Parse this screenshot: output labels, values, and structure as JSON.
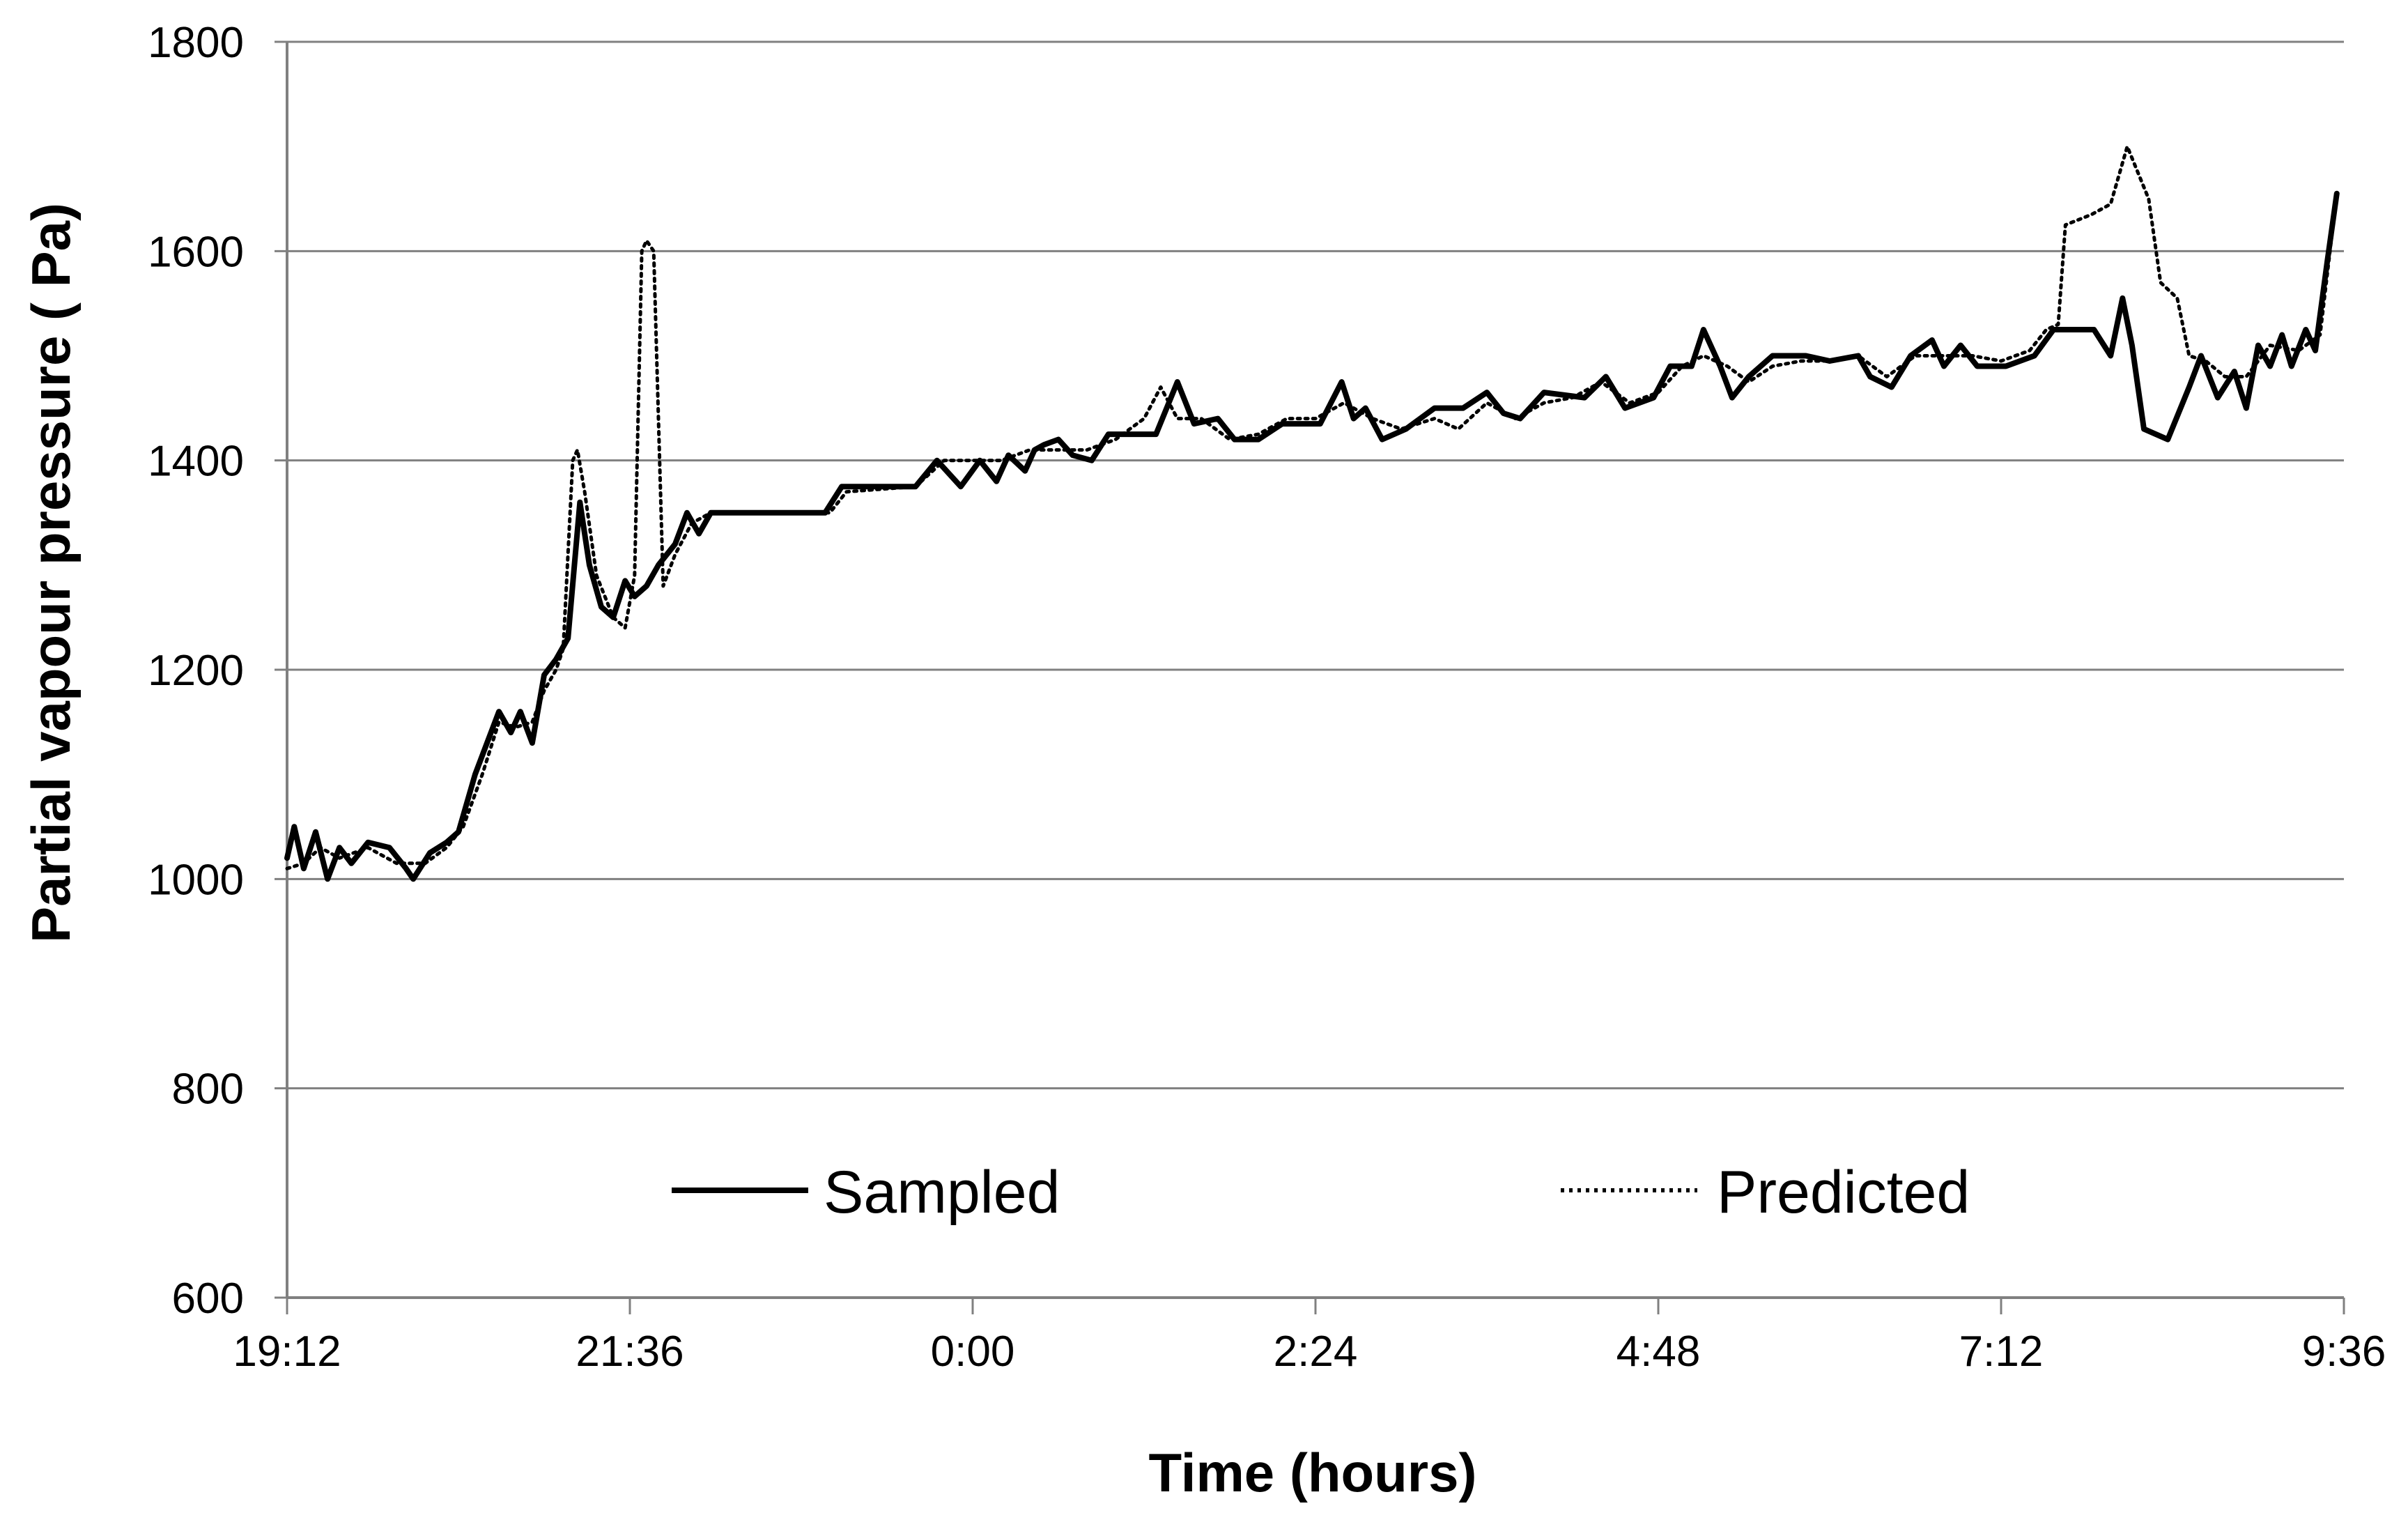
{
  "chart_data": {
    "type": "line",
    "xlabel": "Time (hours)",
    "ylabel": "Partial vapour pressure ( Pa)",
    "x_unit": "time of day (hh:mm), spanning 19:12 to 9:36 next day",
    "xlim": [
      "19:12",
      "9:36"
    ],
    "ylim": [
      600,
      1800
    ],
    "x_ticks": [
      "19:12",
      "21:36",
      "0:00",
      "2:24",
      "4:48",
      "7:12",
      "9:36"
    ],
    "y_ticks": [
      "600",
      "800",
      "1000",
      "1200",
      "1400",
      "1600",
      "1800"
    ],
    "grid": "horizontal",
    "legend_placement": "inside-lower",
    "colors": {
      "line": "#000000",
      "grid": "#808080",
      "axis": "#808080"
    },
    "series": [
      {
        "name": "Sampled",
        "style": "solid",
        "points": [
          [
            "19:12",
            1020
          ],
          [
            "19:15",
            1050
          ],
          [
            "19:19",
            1010
          ],
          [
            "19:24",
            1045
          ],
          [
            "19:29",
            1000
          ],
          [
            "19:34",
            1030
          ],
          [
            "19:39",
            1015
          ],
          [
            "19:46",
            1035
          ],
          [
            "19:55",
            1030
          ],
          [
            "20:02",
            1010
          ],
          [
            "20:05",
            1000
          ],
          [
            "20:12",
            1025
          ],
          [
            "20:19",
            1035
          ],
          [
            "20:24",
            1045
          ],
          [
            "20:31",
            1100
          ],
          [
            "20:36",
            1130
          ],
          [
            "20:41",
            1160
          ],
          [
            "20:46",
            1140
          ],
          [
            "20:50",
            1160
          ],
          [
            "20:55",
            1130
          ],
          [
            "21:00",
            1195
          ],
          [
            "21:05",
            1210
          ],
          [
            "21:10",
            1230
          ],
          [
            "21:15",
            1360
          ],
          [
            "21:19",
            1300
          ],
          [
            "21:24",
            1260
          ],
          [
            "21:29",
            1250
          ],
          [
            "21:34",
            1285
          ],
          [
            "21:38",
            1270
          ],
          [
            "21:43",
            1280
          ],
          [
            "21:48",
            1300
          ],
          [
            "21:55",
            1320
          ],
          [
            "22:00",
            1350
          ],
          [
            "22:05",
            1330
          ],
          [
            "22:10",
            1350
          ],
          [
            "22:36",
            1350
          ],
          [
            "22:58",
            1350
          ],
          [
            "23:05",
            1375
          ],
          [
            "23:36",
            1375
          ],
          [
            "23:45",
            1400
          ],
          [
            "23:55",
            1375
          ],
          [
            "24:03",
            1400
          ],
          [
            "24:10",
            1380
          ],
          [
            "24:15",
            1405
          ],
          [
            "24:22",
            1390
          ],
          [
            "24:26",
            1410
          ],
          [
            "24:30",
            1415
          ],
          [
            "24:36",
            1420
          ],
          [
            "24:42",
            1405
          ],
          [
            "24:50",
            1400
          ],
          [
            "24:57",
            1425
          ],
          [
            "25:05",
            1425
          ],
          [
            "25:17",
            1425
          ],
          [
            "25:26",
            1475
          ],
          [
            "25:33",
            1435
          ],
          [
            "25:43",
            1440
          ],
          [
            "25:50",
            1420
          ],
          [
            "26:00",
            1420
          ],
          [
            "26:10",
            1435
          ],
          [
            "26:26",
            1435
          ],
          [
            "26:35",
            1475
          ],
          [
            "26:40",
            1440
          ],
          [
            "26:45",
            1450
          ],
          [
            "26:52",
            1420
          ],
          [
            "27:02",
            1430
          ],
          [
            "27:14",
            1450
          ],
          [
            "27:26",
            1450
          ],
          [
            "27:36",
            1465
          ],
          [
            "27:43",
            1445
          ],
          [
            "27:50",
            1440
          ],
          [
            "28:00",
            1465
          ],
          [
            "28:17",
            1460
          ],
          [
            "28:26",
            1480
          ],
          [
            "28:34",
            1450
          ],
          [
            "28:46",
            1460
          ],
          [
            "28:53",
            1490
          ],
          [
            "29:02",
            1490
          ],
          [
            "29:07",
            1525
          ],
          [
            "29:14",
            1490
          ],
          [
            "29:19",
            1460
          ],
          [
            "29:26",
            1480
          ],
          [
            "29:36",
            1500
          ],
          [
            "29:50",
            1500
          ],
          [
            "30:00",
            1495
          ],
          [
            "30:12",
            1500
          ],
          [
            "30:17",
            1480
          ],
          [
            "30:26",
            1470
          ],
          [
            "30:34",
            1500
          ],
          [
            "30:43",
            1515
          ],
          [
            "30:48",
            1490
          ],
          [
            "30:55",
            1510
          ],
          [
            "31:02",
            1490
          ],
          [
            "31:14",
            1490
          ],
          [
            "31:26",
            1500
          ],
          [
            "31:34",
            1525
          ],
          [
            "31:51",
            1525
          ],
          [
            "31:58",
            1500
          ],
          [
            "32:03",
            1555
          ],
          [
            "32:07",
            1510
          ],
          [
            "32:12",
            1430
          ],
          [
            "32:22",
            1420
          ],
          [
            "32:31",
            1470
          ],
          [
            "32:36",
            1500
          ],
          [
            "32:43",
            1460
          ],
          [
            "32:50",
            1485
          ],
          [
            "32:55",
            1450
          ],
          [
            "33:00",
            1510
          ],
          [
            "33:05",
            1490
          ],
          [
            "33:10",
            1520
          ],
          [
            "33:14",
            1490
          ],
          [
            "33:20",
            1525
          ],
          [
            "33:24",
            1505
          ],
          [
            "33:29",
            1590
          ],
          [
            "33:33",
            1655
          ]
        ]
      },
      {
        "name": "Predicted",
        "style": "dotted",
        "points": [
          [
            "19:12",
            1010
          ],
          [
            "19:19",
            1015
          ],
          [
            "19:26",
            1030
          ],
          [
            "19:34",
            1020
          ],
          [
            "19:46",
            1030
          ],
          [
            "19:58",
            1015
          ],
          [
            "20:10",
            1015
          ],
          [
            "20:19",
            1030
          ],
          [
            "20:26",
            1050
          ],
          [
            "20:34",
            1100
          ],
          [
            "20:41",
            1150
          ],
          [
            "20:48",
            1145
          ],
          [
            "20:55",
            1150
          ],
          [
            "21:00",
            1180
          ],
          [
            "21:05",
            1200
          ],
          [
            "21:08",
            1220
          ],
          [
            "21:12",
            1400
          ],
          [
            "21:14",
            1410
          ],
          [
            "21:17",
            1370
          ],
          [
            "21:22",
            1290
          ],
          [
            "21:29",
            1250
          ],
          [
            "21:34",
            1240
          ],
          [
            "21:38",
            1290
          ],
          [
            "21:41",
            1600
          ],
          [
            "21:43",
            1610
          ],
          [
            "21:46",
            1600
          ],
          [
            "21:50",
            1280
          ],
          [
            "21:55",
            1310
          ],
          [
            "22:02",
            1340
          ],
          [
            "22:10",
            1350
          ],
          [
            "22:36",
            1350
          ],
          [
            "23:00",
            1350
          ],
          [
            "23:07",
            1370
          ],
          [
            "23:36",
            1375
          ],
          [
            "23:48",
            1400
          ],
          [
            "24:00",
            1400
          ],
          [
            "24:12",
            1400
          ],
          [
            "24:24",
            1410
          ],
          [
            "24:36",
            1410
          ],
          [
            "24:48",
            1410
          ],
          [
            "25:00",
            1420
          ],
          [
            "25:12",
            1440
          ],
          [
            "25:19",
            1470
          ],
          [
            "25:26",
            1440
          ],
          [
            "25:36",
            1440
          ],
          [
            "25:48",
            1420
          ],
          [
            "26:00",
            1425
          ],
          [
            "26:12",
            1440
          ],
          [
            "26:24",
            1440
          ],
          [
            "26:36",
            1455
          ],
          [
            "26:48",
            1440
          ],
          [
            "27:00",
            1430
          ],
          [
            "27:14",
            1440
          ],
          [
            "27:24",
            1430
          ],
          [
            "27:36",
            1455
          ],
          [
            "27:48",
            1440
          ],
          [
            "28:00",
            1455
          ],
          [
            "28:12",
            1460
          ],
          [
            "28:24",
            1475
          ],
          [
            "28:36",
            1455
          ],
          [
            "28:48",
            1465
          ],
          [
            "28:58",
            1490
          ],
          [
            "29:07",
            1500
          ],
          [
            "29:17",
            1490
          ],
          [
            "29:26",
            1475
          ],
          [
            "29:36",
            1490
          ],
          [
            "29:48",
            1495
          ],
          [
            "30:00",
            1495
          ],
          [
            "30:12",
            1500
          ],
          [
            "30:24",
            1480
          ],
          [
            "30:36",
            1500
          ],
          [
            "30:48",
            1500
          ],
          [
            "31:00",
            1500
          ],
          [
            "31:12",
            1495
          ],
          [
            "31:24",
            1505
          ],
          [
            "31:31",
            1525
          ],
          [
            "31:36",
            1530
          ],
          [
            "31:39",
            1625
          ],
          [
            "31:50",
            1635
          ],
          [
            "31:58",
            1645
          ],
          [
            "32:05",
            1700
          ],
          [
            "32:14",
            1650
          ],
          [
            "32:19",
            1570
          ],
          [
            "32:26",
            1555
          ],
          [
            "32:31",
            1500
          ],
          [
            "32:38",
            1495
          ],
          [
            "32:46",
            1480
          ],
          [
            "32:55",
            1480
          ],
          [
            "33:05",
            1510
          ],
          [
            "33:17",
            1505
          ],
          [
            "33:26",
            1520
          ],
          [
            "33:33",
            1655
          ]
        ]
      }
    ]
  },
  "legend": {
    "sampled_label": "Sampled",
    "predicted_label": "Predicted"
  }
}
